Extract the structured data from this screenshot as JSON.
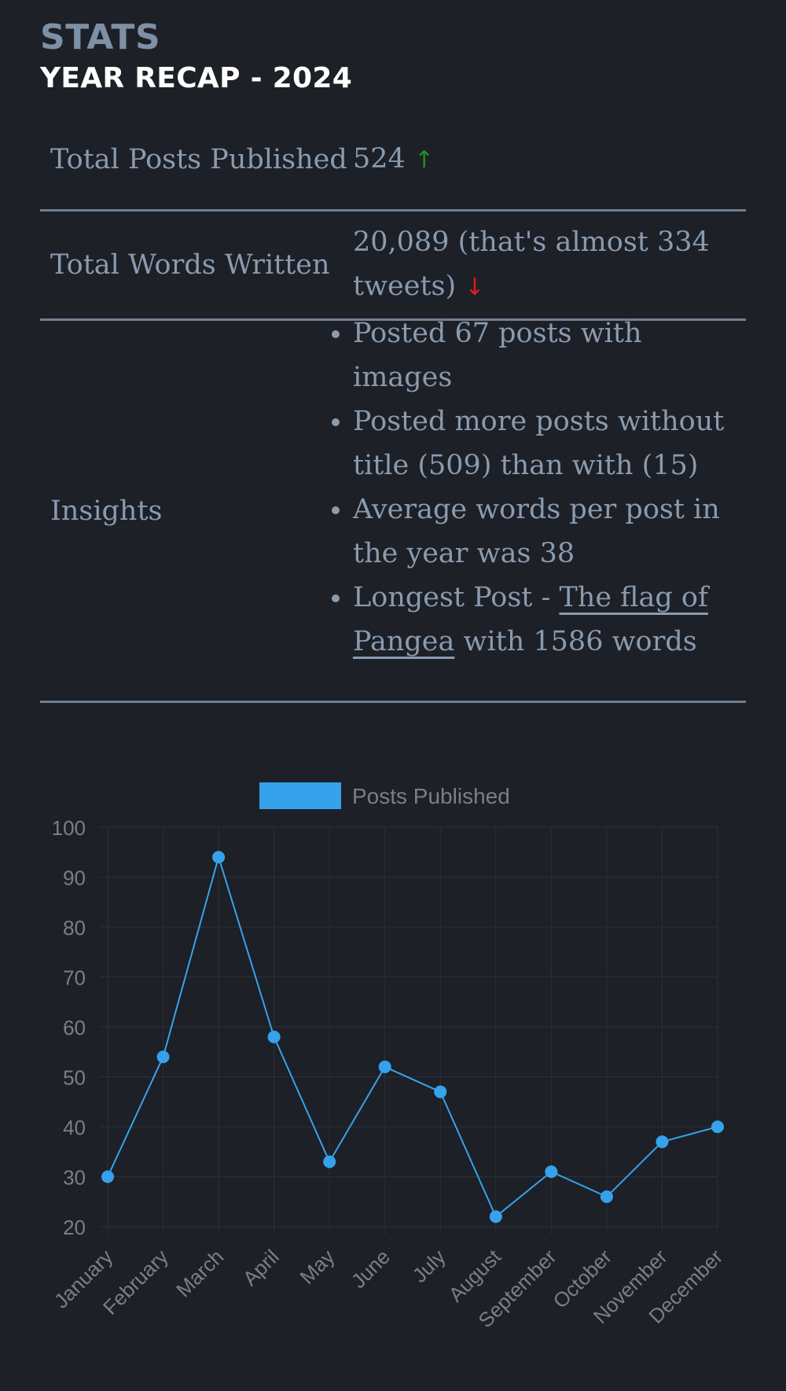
{
  "header": {
    "title": "STATS",
    "subtitle": "YEAR RECAP - 2024"
  },
  "stats": {
    "posts": {
      "label": "Total Posts Published",
      "value": "524",
      "trend": "↑"
    },
    "words": {
      "label": "Total Words Written",
      "value": "20,089 (that's almost 334 tweets)",
      "trend": "↓"
    },
    "insights": {
      "label": "Insights",
      "items": [
        "Posted 67 posts with images",
        "Posted more posts without title (509) than with (15)",
        "Average words per post in the year was 38"
      ],
      "longest": {
        "prefix": "Longest Post - ",
        "link_text": "The flag of Pangea",
        "suffix": " with 1586 words"
      }
    }
  },
  "colors": {
    "up": "#1f8f24",
    "down": "#e01b1b",
    "series": "#36a2eb"
  },
  "chart_data": {
    "type": "line",
    "categories": [
      "January",
      "February",
      "March",
      "April",
      "May",
      "June",
      "July",
      "August",
      "September",
      "October",
      "November",
      "December"
    ],
    "series": [
      {
        "name": "Posts Published",
        "values": [
          30,
          54,
          94,
          58,
          33,
          52,
          47,
          22,
          31,
          26,
          37,
          40
        ]
      }
    ],
    "ylim": [
      20,
      100
    ],
    "yticks": [
      100,
      90,
      80,
      70,
      60,
      50,
      40,
      30,
      20
    ],
    "legend": "top",
    "grid": true
  }
}
